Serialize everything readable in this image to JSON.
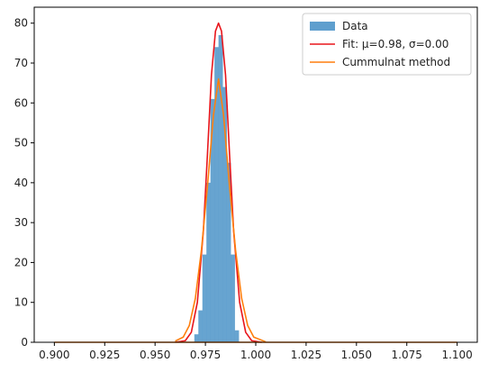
{
  "chart_data": {
    "type": "bar",
    "title": "",
    "xlabel": "",
    "ylabel": "",
    "xlim": [
      0.89,
      1.11
    ],
    "ylim": [
      0,
      84
    ],
    "grid": false,
    "legend_position": "top-right",
    "x_ticks": [
      0.9,
      0.925,
      0.95,
      0.975,
      1.0,
      1.025,
      1.05,
      1.075,
      1.1
    ],
    "x_tick_labels": [
      "0.900",
      "0.925",
      "0.950",
      "0.975",
      "1.000",
      "1.025",
      "1.050",
      "1.075",
      "1.100"
    ],
    "y_ticks": [
      0,
      10,
      20,
      30,
      40,
      50,
      60,
      70,
      80
    ],
    "y_tick_labels": [
      "0",
      "10",
      "20",
      "30",
      "40",
      "50",
      "60",
      "70",
      "80"
    ],
    "series": [
      {
        "name": "Data",
        "kind": "histogram",
        "color": "#5f9fce",
        "bin_edges": [
          0.9695,
          0.9715,
          0.9735,
          0.9755,
          0.9775,
          0.9795,
          0.9815,
          0.9835,
          0.9855,
          0.9875,
          0.9895,
          0.9915
        ],
        "values": [
          2,
          8,
          22,
          40,
          61,
          74,
          77,
          64,
          45,
          22,
          3
        ]
      },
      {
        "name": "Fit: μ=0.98, σ=0.00",
        "kind": "line",
        "color": "#e8161c",
        "x": [
          0.96,
          0.965,
          0.968,
          0.971,
          0.974,
          0.976,
          0.978,
          0.98,
          0.9815,
          0.983,
          0.985,
          0.987,
          0.989,
          0.992,
          0.995,
          0.998,
          1.003
        ],
        "y": [
          0,
          0.4,
          2.5,
          10,
          28,
          47,
          67,
          78,
          80,
          78,
          67,
          47,
          28,
          10,
          2.5,
          0.4,
          0
        ]
      },
      {
        "name": "Cummulnat method",
        "kind": "line",
        "color": "#ff7f0e",
        "x": [
          0.96,
          0.964,
          0.967,
          0.97,
          0.973,
          0.976,
          0.979,
          0.9815,
          0.984,
          0.987,
          0.99,
          0.993,
          0.996,
          0.999,
          1.005
        ],
        "y": [
          0.3,
          1.3,
          4.2,
          11,
          23,
          39,
          57,
          66,
          57,
          39,
          23,
          11,
          4.2,
          1.3,
          0.1
        ]
      },
      {
        "name": "",
        "kind": "baseline",
        "color": "#ff7f0e",
        "x": [
          0.9,
          1.1
        ],
        "y": [
          0,
          0
        ]
      }
    ]
  }
}
